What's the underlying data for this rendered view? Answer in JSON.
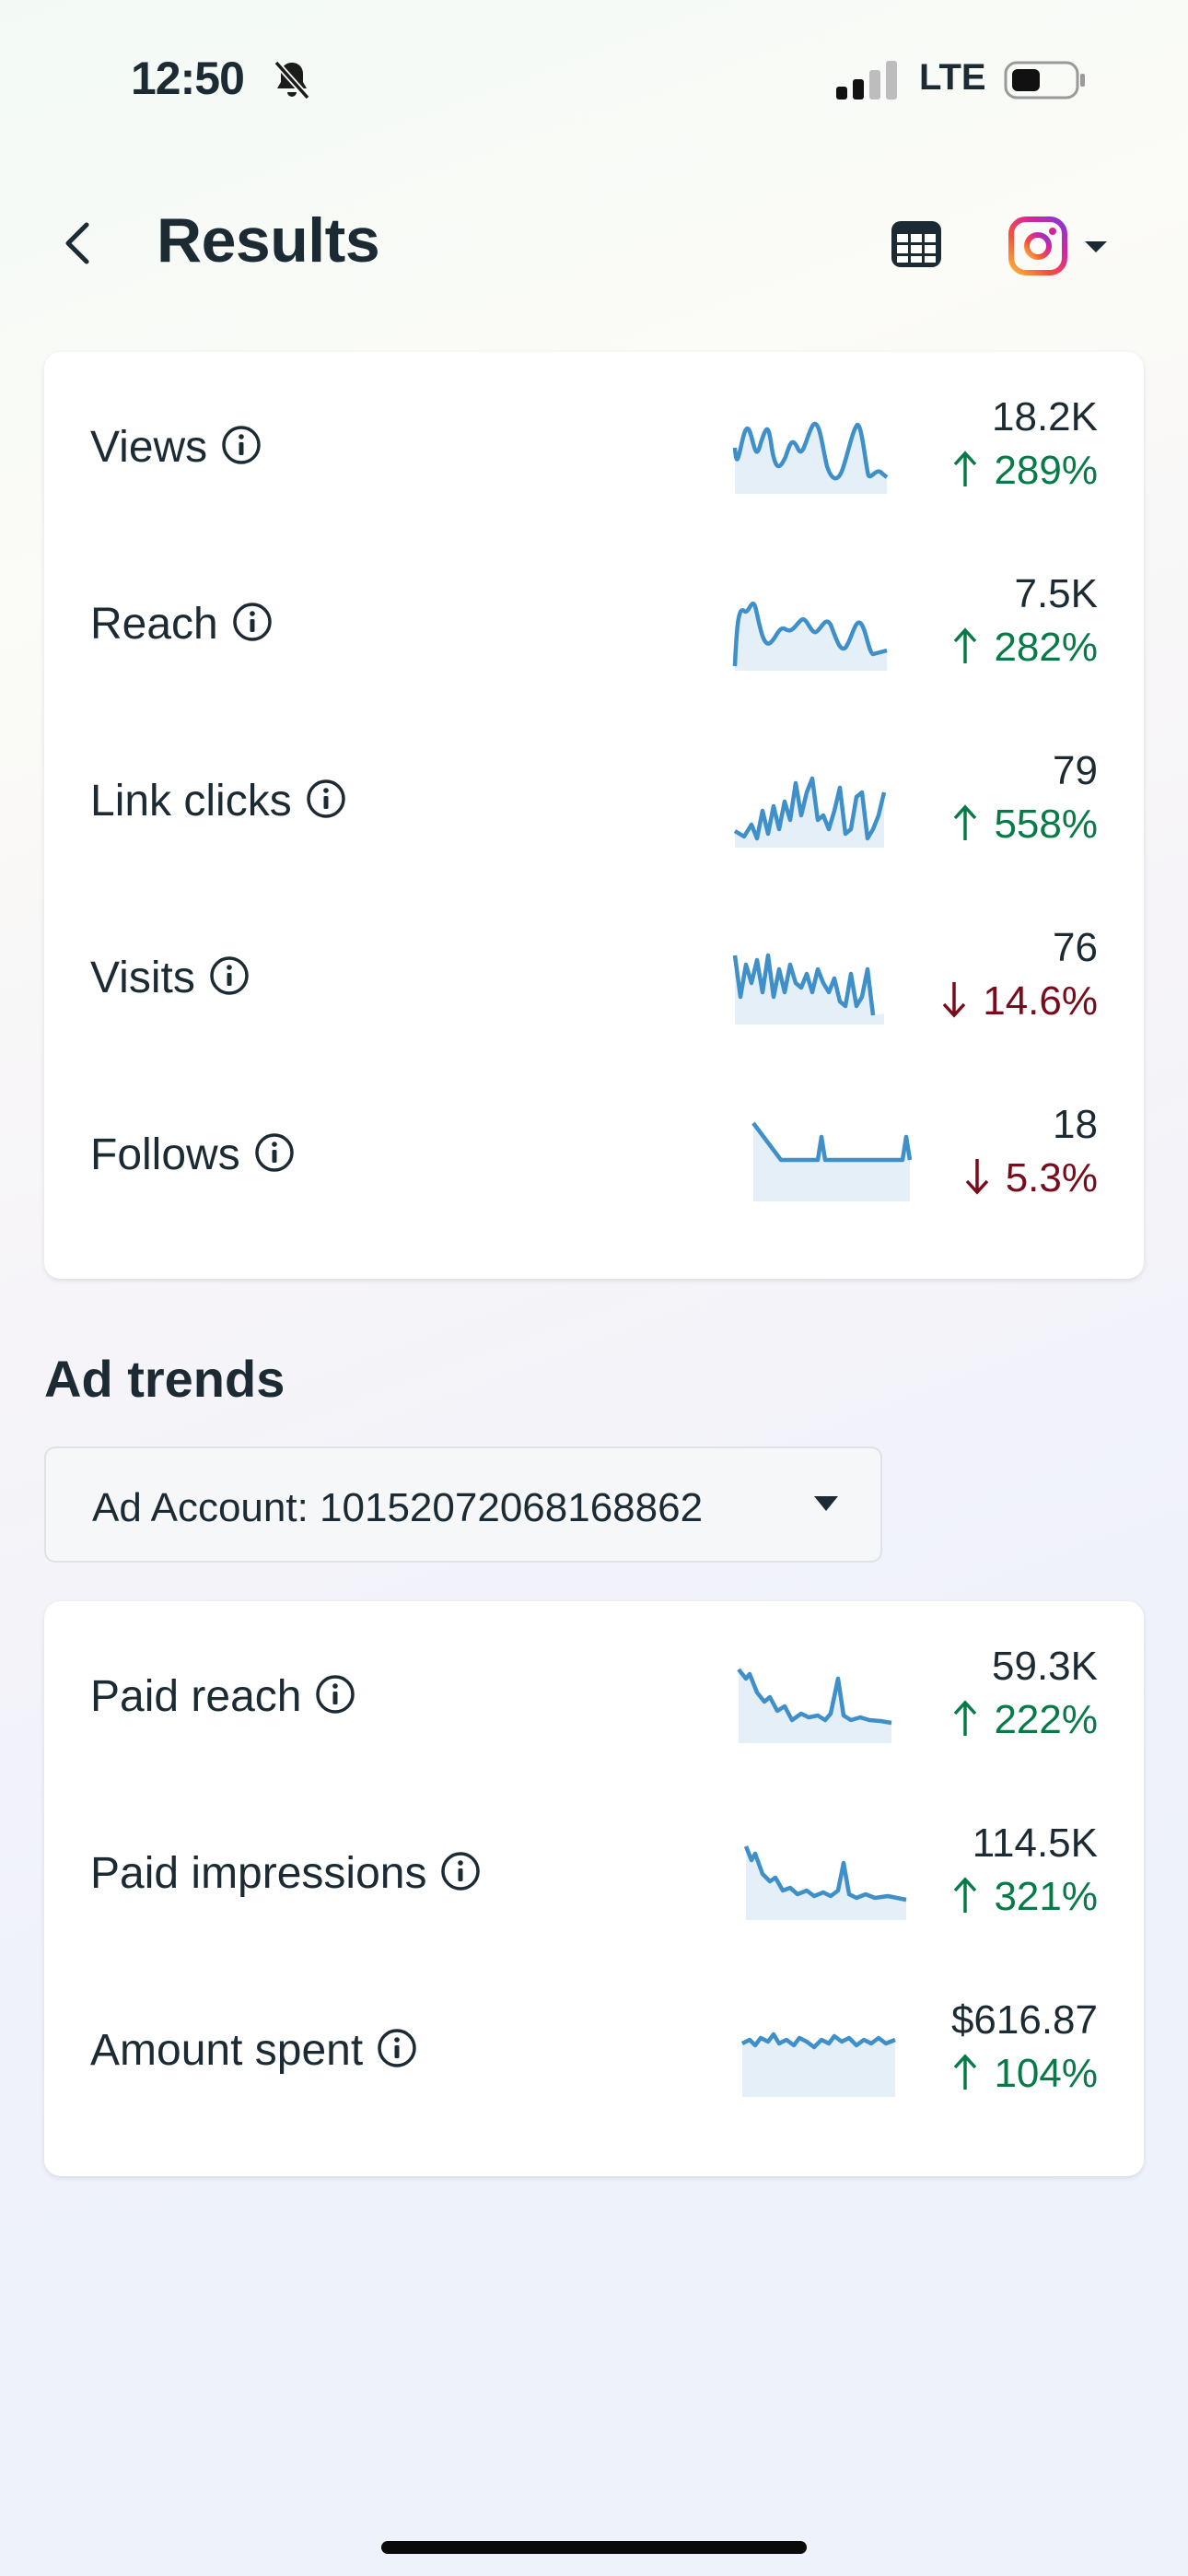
{
  "status_bar": {
    "time": "12:50",
    "network": "LTE",
    "icons": [
      "bell-slash-icon",
      "signal-icon",
      "battery-icon"
    ]
  },
  "header": {
    "title": "Results",
    "icons": [
      "back-chevron-icon",
      "calendar-icon",
      "instagram-logo-icon",
      "caret-down-icon"
    ]
  },
  "results": {
    "metrics": [
      {
        "label": "Views",
        "value": "18.2K",
        "change": "289%",
        "direction": "up"
      },
      {
        "label": "Reach",
        "value": "7.5K",
        "change": "282%",
        "direction": "up"
      },
      {
        "label": "Link clicks",
        "value": "79",
        "change": "558%",
        "direction": "up"
      },
      {
        "label": "Visits",
        "value": "76",
        "change": "14.6%",
        "direction": "down"
      },
      {
        "label": "Follows",
        "value": "18",
        "change": "5.3%",
        "direction": "down"
      }
    ]
  },
  "ad_trends": {
    "title": "Ad trends",
    "account_select": "Ad Account: 10152072068168862",
    "metrics": [
      {
        "label": "Paid reach",
        "value": "59.3K",
        "change": "222%",
        "direction": "up"
      },
      {
        "label": "Paid impressions",
        "value": "114.5K",
        "change": "321%",
        "direction": "up"
      },
      {
        "label": "Amount spent",
        "value": "$616.87",
        "change": "104%",
        "direction": "up"
      }
    ]
  },
  "colors": {
    "up": "#067a47",
    "down": "#7a0b1a",
    "sparkline": "#3f8fc9",
    "sparkline_fill": "#e4eff7"
  }
}
